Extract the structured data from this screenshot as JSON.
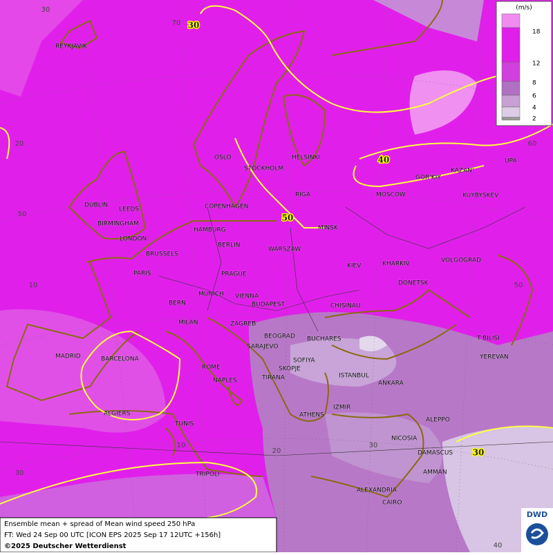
{
  "legend": {
    "unit": "(m/s)",
    "labels": [
      "18",
      "12",
      "8",
      "6",
      "4",
      "2"
    ]
  },
  "cities": [
    "REYKJAVIK",
    "OSLO",
    "STOCKHOLM",
    "HELSINKI",
    "RIGA",
    "DUBLIN",
    "LEEDS",
    "COPENHAGEN",
    "BIRMINGHAM",
    "HAMBURG",
    "MINSK",
    "LONDON",
    "BERLIN",
    "WARSZAW",
    "MOSCOW",
    "KAZAN'",
    "UPA",
    "GOR'KIY",
    "KUYBYSKEV",
    "BRUSSELS",
    "KIEV",
    "KHARKIV",
    "VOLGOGRAD",
    "PARIS",
    "PRAGUE",
    "DONETSK",
    "MUNICH",
    "VIENNA",
    "BERN",
    "BUDAPEST",
    "CHISINAU",
    "MILAN",
    "ZAGREB",
    "BEOGRAD",
    "BUCHARES",
    "T'BILISI",
    "MADRID",
    "BARCELONA",
    "SARAJEVO",
    "SOFIYA",
    "YEREVAN",
    "ROME",
    "SKOPJE",
    "TIRANA",
    "ISTANBUL",
    "ANKARA",
    "NAPLES",
    "IZMIR",
    "ALGIERS",
    "ATHENS",
    "ALEPPO",
    "TUNIS",
    "NICOSIA",
    "DAMASCUS",
    "AMMAN",
    "TRIPOLI",
    "ALEXANDRIA",
    "CAIRO"
  ],
  "grid_labels": [
    "30",
    "70",
    "20",
    "60",
    "50",
    "10",
    "50",
    "20",
    "30",
    "10",
    "30",
    "40"
  ],
  "contour_labels": [
    "30",
    "40",
    "50",
    "30"
  ],
  "footer": {
    "line1": "Ensemble mean + spread of Mean wind speed 250 hPa",
    "line2": "FT: Wed 24 Sep 00 UTC [ICON EPS 2025 Sep 17 12UTC +156h]",
    "line3": "©2025 Deutscher Wetterdienst"
  },
  "logo": "DWD"
}
